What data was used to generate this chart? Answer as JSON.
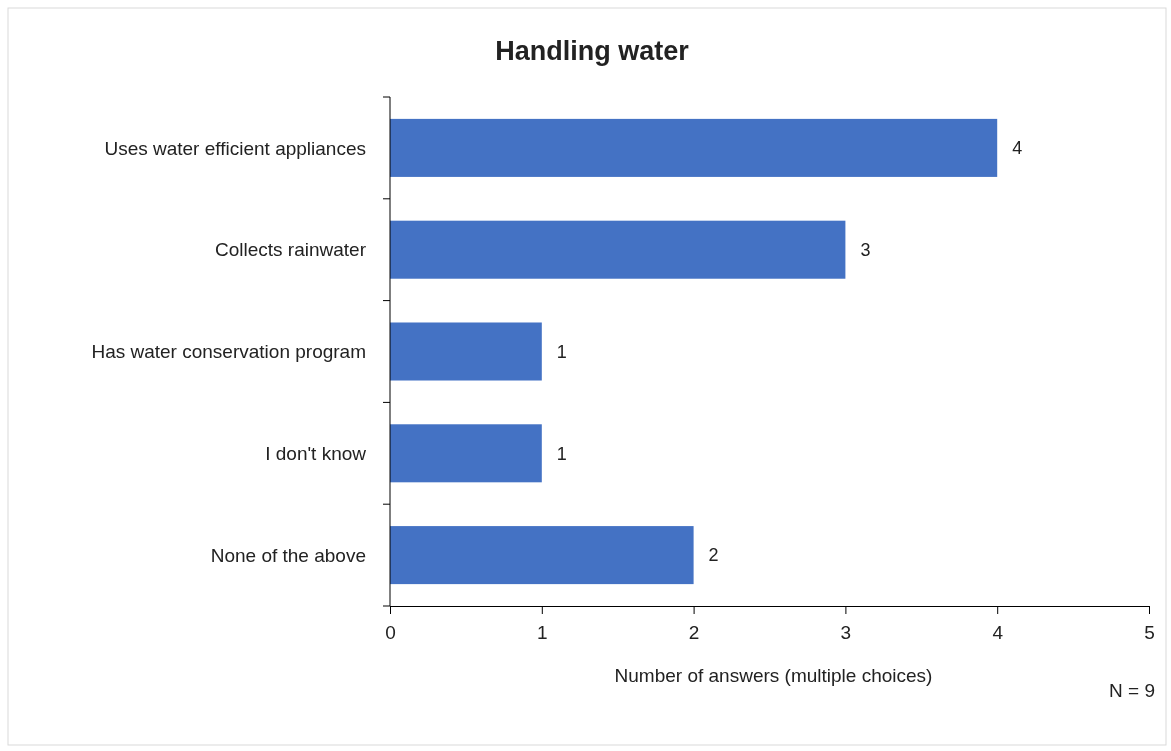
{
  "chart_data": {
    "type": "bar",
    "orientation": "horizontal",
    "title": "Handling water",
    "xlabel": "Number of answers (multiple choices)",
    "categories": [
      "Uses water efficient appliances",
      "Collects rainwater",
      "Has water conservation program",
      "I don't know",
      "None of the above"
    ],
    "values": [
      4,
      3,
      1,
      1,
      2
    ],
    "color": "#4472c4",
    "xlim": [
      0,
      5
    ],
    "xticks": [
      0,
      1,
      2,
      3,
      4,
      5
    ],
    "grid": false,
    "data_labels": true,
    "annotations": [
      "N = 9"
    ]
  }
}
